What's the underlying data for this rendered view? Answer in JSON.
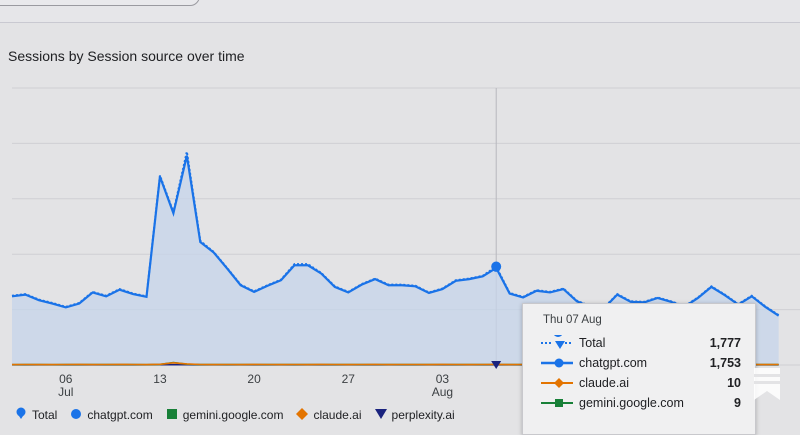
{
  "page": {
    "title": "Sessions by Session source over time"
  },
  "tooltip": {
    "date": "Thu 07 Aug",
    "rows": [
      {
        "name": "Total",
        "value": "1,777",
        "color": "#1a73e8"
      },
      {
        "name": "chatgpt.com",
        "value": "1,753",
        "color": "#1a73e8"
      },
      {
        "name": "claude.ai",
        "value": "10",
        "color": "#e37400"
      },
      {
        "name": "gemini.google.com",
        "value": "9",
        "color": "#188038"
      }
    ]
  },
  "legend": {
    "items": [
      {
        "label": "Total",
        "color": "#1a73e8",
        "icon": "pin-icon"
      },
      {
        "label": "chatgpt.com",
        "color": "#1a73e8",
        "icon": "circle-icon"
      },
      {
        "label": "gemini.google.com",
        "color": "#188038",
        "icon": "square-icon"
      },
      {
        "label": "claude.ai",
        "color": "#e37400",
        "icon": "diamond-icon"
      },
      {
        "label": "perplexity.ai",
        "color": "#1a237e",
        "icon": "triangle-icon"
      }
    ]
  },
  "chart_data": {
    "type": "line",
    "title": "Sessions by Session source over time",
    "x": [
      "Jul 2",
      "Jul 3",
      "Jul 4",
      "Jul 5",
      "Jul 6",
      "Jul 7",
      "Jul 8",
      "Jul 9",
      "Jul 10",
      "Jul 11",
      "Jul 12",
      "Jul 13",
      "Jul 14",
      "Jul 15",
      "Jul 16",
      "Jul 17",
      "Jul 18",
      "Jul 19",
      "Jul 20",
      "Jul 21",
      "Jul 22",
      "Jul 23",
      "Jul 24",
      "Jul 25",
      "Jul 26",
      "Jul 27",
      "Jul 28",
      "Jul 29",
      "Jul 30",
      "Jul 31",
      "Aug 1",
      "Aug 2",
      "Aug 3",
      "Aug 4",
      "Aug 5",
      "Aug 6",
      "Aug 7",
      "Aug 8",
      "Aug 9",
      "Aug 10",
      "Aug 11",
      "Aug 12",
      "Aug 13",
      "Aug 14",
      "Aug 15",
      "Aug 16",
      "Aug 17",
      "Aug 18",
      "Aug 19",
      "Aug 20",
      "Aug 21",
      "Aug 22",
      "Aug 23",
      "Aug 24",
      "Aug 25",
      "Aug 26",
      "Aug 27",
      "Aug 28"
    ],
    "x_tick_labels": [
      {
        "x": "Jul 6",
        "label": "06",
        "sub": "Jul"
      },
      {
        "x": "Jul 13",
        "label": "13",
        "sub": ""
      },
      {
        "x": "Jul 20",
        "label": "20",
        "sub": ""
      },
      {
        "x": "Jul 27",
        "label": "27",
        "sub": ""
      },
      {
        "x": "Aug 3",
        "label": "03",
        "sub": "Aug"
      }
    ],
    "ylim": [
      0,
      5000
    ],
    "y_gridlines": [
      0,
      1000,
      2000,
      3000,
      4000,
      5000
    ],
    "highlight_x": "Aug 7",
    "series": [
      {
        "name": "Total",
        "color": "#1a73e8",
        "style": "dotted",
        "values": [
          1250,
          1280,
          1180,
          1120,
          1050,
          1120,
          1320,
          1250,
          1370,
          1290,
          1240,
          3420,
          2760,
          3850,
          2240,
          2040,
          1750,
          1450,
          1330,
          1440,
          1540,
          1820,
          1820,
          1660,
          1420,
          1320,
          1460,
          1560,
          1450,
          1450,
          1430,
          1310,
          1380,
          1530,
          1560,
          1610,
          1777,
          1300,
          1230,
          1350,
          1320,
          1380,
          1160,
          1060,
          1030,
          1280,
          1150,
          1140,
          1220,
          1150,
          1060,
          1220,
          1420,
          1270,
          1100,
          1250,
          1060,
          900
        ]
      },
      {
        "name": "chatgpt.com",
        "color": "#1a73e8",
        "style": "solid",
        "values": [
          1240,
          1270,
          1170,
          1110,
          1040,
          1110,
          1310,
          1240,
          1360,
          1280,
          1230,
          3400,
          2740,
          3780,
          2220,
          2030,
          1740,
          1440,
          1320,
          1430,
          1530,
          1800,
          1800,
          1650,
          1410,
          1310,
          1450,
          1550,
          1440,
          1440,
          1420,
          1300,
          1370,
          1520,
          1550,
          1600,
          1753,
          1290,
          1220,
          1340,
          1310,
          1370,
          1150,
          1050,
          1020,
          1270,
          1140,
          1130,
          1210,
          1140,
          1050,
          1210,
          1410,
          1260,
          1090,
          1240,
          1050,
          890
        ]
      },
      {
        "name": "claude.ai",
        "color": "#e37400",
        "style": "solid",
        "values": [
          8,
          9,
          7,
          8,
          9,
          10,
          8,
          9,
          10,
          9,
          8,
          12,
          40,
          20,
          9,
          8,
          9,
          8,
          10,
          9,
          8,
          9,
          8,
          10,
          9,
          8,
          9,
          10,
          8,
          9,
          9,
          8,
          10,
          9,
          8,
          9,
          10,
          8,
          9,
          8,
          9,
          10,
          8,
          9,
          8,
          9,
          10,
          8,
          9,
          8,
          9,
          10,
          8,
          9,
          8,
          9,
          8,
          9
        ]
      },
      {
        "name": "gemini.google.com",
        "color": "#188038",
        "style": "solid",
        "values": [
          6,
          7,
          8,
          6,
          7,
          8,
          9,
          7,
          8,
          7,
          6,
          10,
          45,
          15,
          8,
          7,
          8,
          7,
          9,
          8,
          7,
          8,
          7,
          9,
          8,
          7,
          8,
          9,
          7,
          8,
          8,
          7,
          9,
          8,
          7,
          8,
          9,
          7,
          8,
          7,
          8,
          9,
          7,
          8,
          7,
          8,
          9,
          7,
          8,
          7,
          8,
          9,
          7,
          8,
          7,
          8,
          7,
          8
        ]
      },
      {
        "name": "perplexity.ai",
        "color": "#1a237e",
        "style": "solid",
        "values": [
          3,
          4,
          3,
          4,
          3,
          4,
          3,
          4,
          3,
          4,
          3,
          5,
          6,
          5,
          4,
          3,
          4,
          3,
          4,
          3,
          4,
          3,
          4,
          3,
          4,
          3,
          4,
          3,
          4,
          3,
          4,
          3,
          4,
          3,
          4,
          3,
          4,
          3,
          4,
          3,
          4,
          3,
          4,
          3,
          4,
          3,
          4,
          3,
          4,
          3,
          4,
          3,
          4,
          3,
          4,
          3,
          4,
          3
        ]
      }
    ]
  }
}
